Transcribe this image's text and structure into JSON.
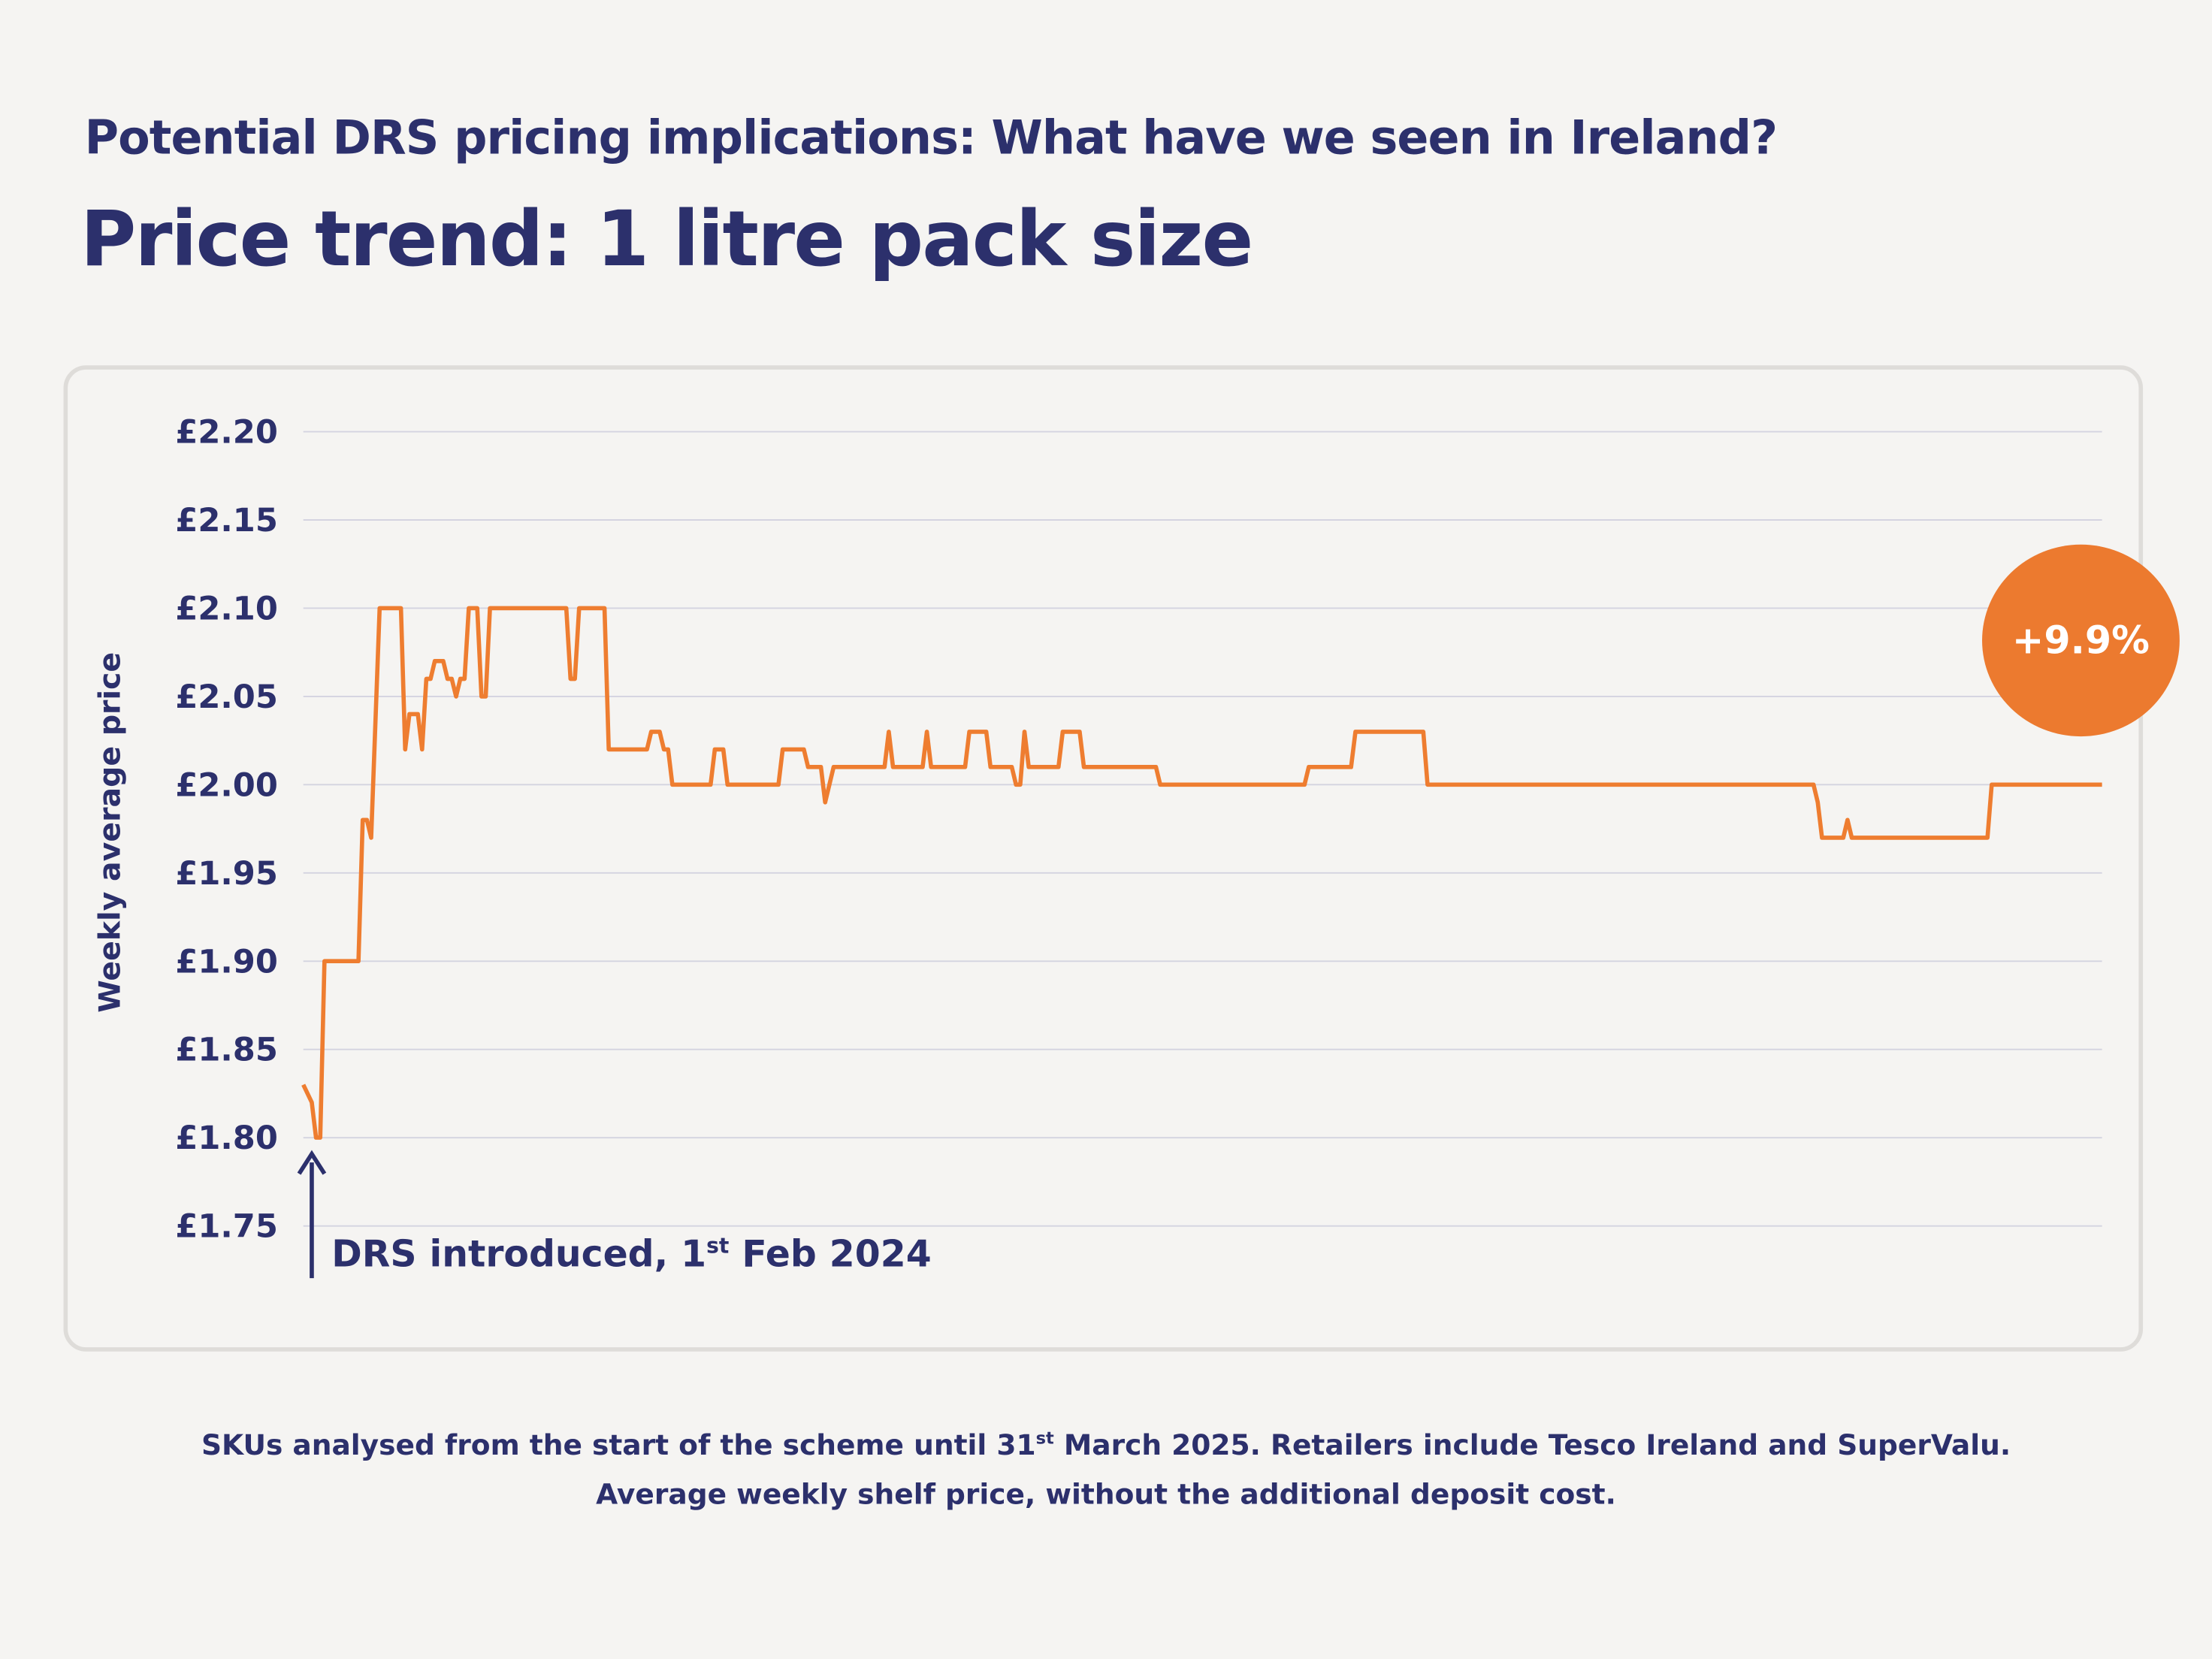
{
  "header": {
    "subtitle": "Potential DRS pricing implications: What have we seen in Ireland?",
    "title": "Price trend: 1 litre pack size"
  },
  "badge": {
    "text": "+9.9%",
    "color": "#ec7a2f"
  },
  "annotation": {
    "text_before": "DRS introduced, 1",
    "sup": "st",
    "text_after": " Feb 2024",
    "arrow-icon": "arrow-up-icon"
  },
  "footer": {
    "line1_before": "SKUs analysed from the start of the scheme until 31",
    "line1_sup": "st",
    "line1_after": " March 2025. Retailers include Tesco Ireland and SuperValu.",
    "line2": "Average weekly shelf price, without the additional deposit cost."
  },
  "colors": {
    "line": "#ee7d30",
    "text": "#2c306c",
    "grid": "#d4d3e0"
  },
  "chart_data": {
    "type": "line",
    "title": "Price trend: 1 litre pack size",
    "ylabel": "Weekly average price",
    "xlabel": "",
    "ylim": [
      1.75,
      2.2
    ],
    "yticks": [
      "£2.20",
      "£2.15",
      "£2.10",
      "£2.05",
      "£2.00",
      "£1.95",
      "£1.90",
      "£1.85",
      "£1.80",
      "£1.75"
    ],
    "ytick_values": [
      2.2,
      2.15,
      2.1,
      2.05,
      2.0,
      1.95,
      1.9,
      1.85,
      1.8,
      1.75
    ],
    "grid": "horizontal",
    "xlim": [
      "2024-02-01",
      "2025-03-31"
    ],
    "series": [
      {
        "points": [
          [
            "2024-02-01",
            1.83
          ],
          [
            "2024-02-03",
            1.82
          ],
          [
            "2024-02-04",
            1.8
          ],
          [
            "2024-02-05",
            1.8
          ],
          [
            "2024-02-06",
            1.9
          ],
          [
            "2024-02-14",
            1.9
          ],
          [
            "2024-02-15",
            1.98
          ],
          [
            "2024-02-16",
            1.98
          ],
          [
            "2024-02-17",
            1.97
          ],
          [
            "2024-02-19",
            2.1
          ],
          [
            "2024-02-24",
            2.1
          ],
          [
            "2024-02-25",
            2.02
          ],
          [
            "2024-02-26",
            2.04
          ],
          [
            "2024-02-28",
            2.04
          ],
          [
            "2024-02-29",
            2.02
          ],
          [
            "2024-03-01",
            2.06
          ],
          [
            "2024-03-02",
            2.06
          ],
          [
            "2024-03-03",
            2.07
          ],
          [
            "2024-03-05",
            2.07
          ],
          [
            "2024-03-06",
            2.06
          ],
          [
            "2024-03-07",
            2.06
          ],
          [
            "2024-03-08",
            2.05
          ],
          [
            "2024-03-09",
            2.06
          ],
          [
            "2024-03-10",
            2.06
          ],
          [
            "2024-03-11",
            2.1
          ],
          [
            "2024-03-13",
            2.1
          ],
          [
            "2024-03-14",
            2.05
          ],
          [
            "2024-03-15",
            2.05
          ],
          [
            "2024-03-16",
            2.1
          ],
          [
            "2024-04-03",
            2.1
          ],
          [
            "2024-04-04",
            2.06
          ],
          [
            "2024-04-05",
            2.06
          ],
          [
            "2024-04-06",
            2.1
          ],
          [
            "2024-04-12",
            2.1
          ],
          [
            "2024-04-13",
            2.02
          ],
          [
            "2024-04-22",
            2.02
          ],
          [
            "2024-04-23",
            2.03
          ],
          [
            "2024-04-25",
            2.03
          ],
          [
            "2024-04-26",
            2.02
          ],
          [
            "2024-04-27",
            2.02
          ],
          [
            "2024-04-28",
            2.0
          ],
          [
            "2024-05-07",
            2.0
          ],
          [
            "2024-05-08",
            2.02
          ],
          [
            "2024-05-10",
            2.02
          ],
          [
            "2024-05-11",
            2.0
          ],
          [
            "2024-05-23",
            2.0
          ],
          [
            "2024-05-24",
            2.02
          ],
          [
            "2024-05-29",
            2.02
          ],
          [
            "2024-05-30",
            2.01
          ],
          [
            "2024-06-02",
            2.01
          ],
          [
            "2024-06-03",
            1.99
          ],
          [
            "2024-06-05",
            2.01
          ],
          [
            "2024-06-17",
            2.01
          ],
          [
            "2024-06-18",
            2.03
          ],
          [
            "2024-06-19",
            2.01
          ],
          [
            "2024-06-26",
            2.01
          ],
          [
            "2024-06-27",
            2.03
          ],
          [
            "2024-06-28",
            2.01
          ],
          [
            "2024-07-06",
            2.01
          ],
          [
            "2024-07-07",
            2.03
          ],
          [
            "2024-07-11",
            2.03
          ],
          [
            "2024-07-12",
            2.01
          ],
          [
            "2024-07-17",
            2.01
          ],
          [
            "2024-07-18",
            2.0
          ],
          [
            "2024-07-19",
            2.0
          ],
          [
            "2024-07-20",
            2.03
          ],
          [
            "2024-07-21",
            2.01
          ],
          [
            "2024-07-28",
            2.01
          ],
          [
            "2024-07-29",
            2.03
          ],
          [
            "2024-08-02",
            2.03
          ],
          [
            "2024-08-03",
            2.01
          ],
          [
            "2024-08-20",
            2.01
          ],
          [
            "2024-08-21",
            2.0
          ],
          [
            "2024-09-24",
            2.0
          ],
          [
            "2024-09-25",
            2.01
          ],
          [
            "2024-10-05",
            2.01
          ],
          [
            "2024-10-06",
            2.03
          ],
          [
            "2024-10-22",
            2.03
          ],
          [
            "2024-10-23",
            2.0
          ],
          [
            "2025-01-22",
            2.0
          ],
          [
            "2025-01-23",
            1.99
          ],
          [
            "2025-01-24",
            1.97
          ],
          [
            "2025-01-29",
            1.97
          ],
          [
            "2025-01-30",
            1.98
          ],
          [
            "2025-01-31",
            1.97
          ],
          [
            "2025-03-04",
            1.97
          ],
          [
            "2025-03-05",
            2.0
          ],
          [
            "2025-03-31",
            2.0
          ]
        ]
      }
    ]
  }
}
